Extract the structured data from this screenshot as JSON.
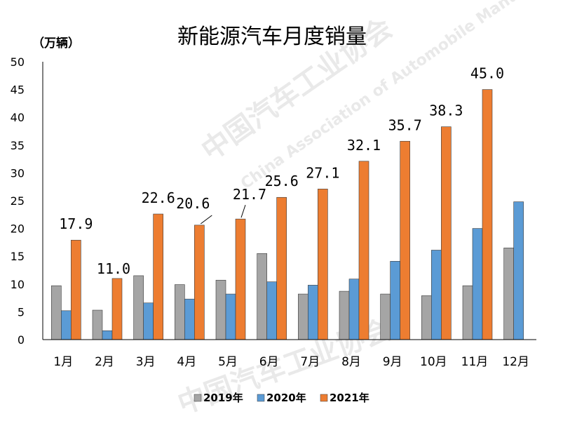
{
  "chart_data": {
    "type": "bar",
    "title": "新能源汽车月度销量",
    "ylabel": "（万辆）",
    "xlabel": "",
    "ylim": [
      0,
      50
    ],
    "yticks": [
      0,
      5,
      10,
      15,
      20,
      25,
      30,
      35,
      40,
      45,
      50
    ],
    "categories": [
      "1月",
      "2月",
      "3月",
      "4月",
      "5月",
      "6月",
      "7月",
      "8月",
      "9月",
      "10月",
      "11月",
      "12月"
    ],
    "series": [
      {
        "name": "2019年",
        "color": "#a5a5a5",
        "values": [
          9.7,
          5.3,
          11.5,
          9.9,
          10.7,
          15.5,
          8.2,
          8.7,
          8.2,
          7.9,
          9.7,
          16.5
        ]
      },
      {
        "name": "2020年",
        "color": "#5b9bd5",
        "values": [
          5.2,
          1.6,
          6.6,
          7.3,
          8.2,
          10.4,
          9.8,
          10.9,
          14.1,
          16.1,
          20.0,
          24.8
        ]
      },
      {
        "name": "2021年",
        "color": "#ed7d31",
        "values": [
          17.9,
          11.0,
          22.6,
          20.6,
          21.7,
          25.6,
          27.1,
          32.1,
          35.7,
          38.3,
          45.0,
          null
        ],
        "data_labels": [
          "17.9",
          "11.0",
          "22.6",
          "20.6",
          "21.7",
          "25.6",
          "27.1",
          "32.1",
          "35.7",
          "38.3",
          "45.0",
          ""
        ]
      }
    ],
    "legend": "bottom",
    "grid": false
  },
  "watermark": {
    "cn": "中国汽车工业协会",
    "en": "China Association of Automobile Manufacturers"
  }
}
